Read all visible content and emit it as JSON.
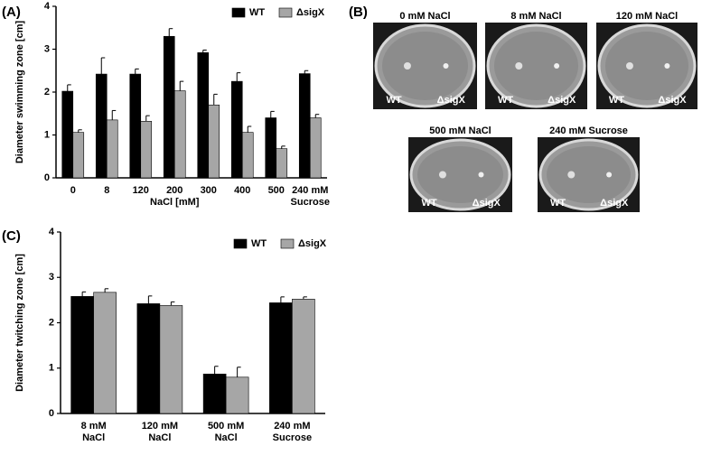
{
  "chart_data": [
    {
      "type": "bar",
      "panel": "(A)",
      "y_label": "Diameter swimming zone [cm]",
      "x_group_label": "NaCl [mM]",
      "categories": [
        [
          "0"
        ],
        [
          "8"
        ],
        [
          "120"
        ],
        [
          "200"
        ],
        [
          "300"
        ],
        [
          "400"
        ],
        [
          "500"
        ],
        [
          "240 mM",
          "Sucrose"
        ]
      ],
      "series": [
        {
          "name": "WT",
          "color": "#000000",
          "values": [
            2.02,
            2.42,
            2.42,
            3.3,
            2.92,
            2.25,
            1.4,
            2.43
          ],
          "errors": [
            0.15,
            0.38,
            0.12,
            0.18,
            0.06,
            0.2,
            0.15,
            0.07
          ]
        },
        {
          "name": "ΔsigX",
          "color": "#a6a6a6",
          "values": [
            1.06,
            1.35,
            1.32,
            2.03,
            1.7,
            1.06,
            0.68,
            1.4
          ],
          "errors": [
            0.06,
            0.22,
            0.13,
            0.22,
            0.25,
            0.14,
            0.06,
            0.08
          ]
        }
      ],
      "ylim": [
        0,
        4
      ],
      "yticks": [
        0,
        1,
        2,
        3,
        4
      ],
      "legend": "top-right"
    },
    {
      "type": "bar",
      "panel": "(C)",
      "y_label": "Diameter twitching zone [cm]",
      "categories": [
        [
          "8 mM",
          "NaCl"
        ],
        [
          "120 mM",
          "NaCl"
        ],
        [
          "500 mM",
          "NaCl"
        ],
        [
          "240 mM",
          "Sucrose"
        ]
      ],
      "series": [
        {
          "name": "WT",
          "color": "#000000",
          "values": [
            2.58,
            2.42,
            0.87,
            2.44
          ],
          "errors": [
            0.1,
            0.17,
            0.17,
            0.13
          ]
        },
        {
          "name": "ΔsigX",
          "color": "#a6a6a6",
          "values": [
            2.67,
            2.38,
            0.8,
            2.52
          ],
          "errors": [
            0.08,
            0.08,
            0.22,
            0.05
          ]
        }
      ],
      "ylim": [
        0,
        4
      ],
      "yticks": [
        0,
        1,
        2,
        3,
        4
      ],
      "legend": "top-right"
    }
  ],
  "photo_panel": {
    "panel": "(B)",
    "plates": [
      {
        "label": "0 mM NaCl",
        "left": "WT",
        "right": "ΔsigX"
      },
      {
        "label": "8 mM NaCl",
        "left": "WT",
        "right": "ΔsigX"
      },
      {
        "label": "120 mM NaCl",
        "left": "WT",
        "right": "ΔsigX"
      },
      {
        "label": "500 mM NaCl",
        "left": "WT",
        "right": "ΔsigX"
      },
      {
        "label": "240 mM Sucrose",
        "left": "WT",
        "right": "ΔsigX"
      }
    ]
  }
}
